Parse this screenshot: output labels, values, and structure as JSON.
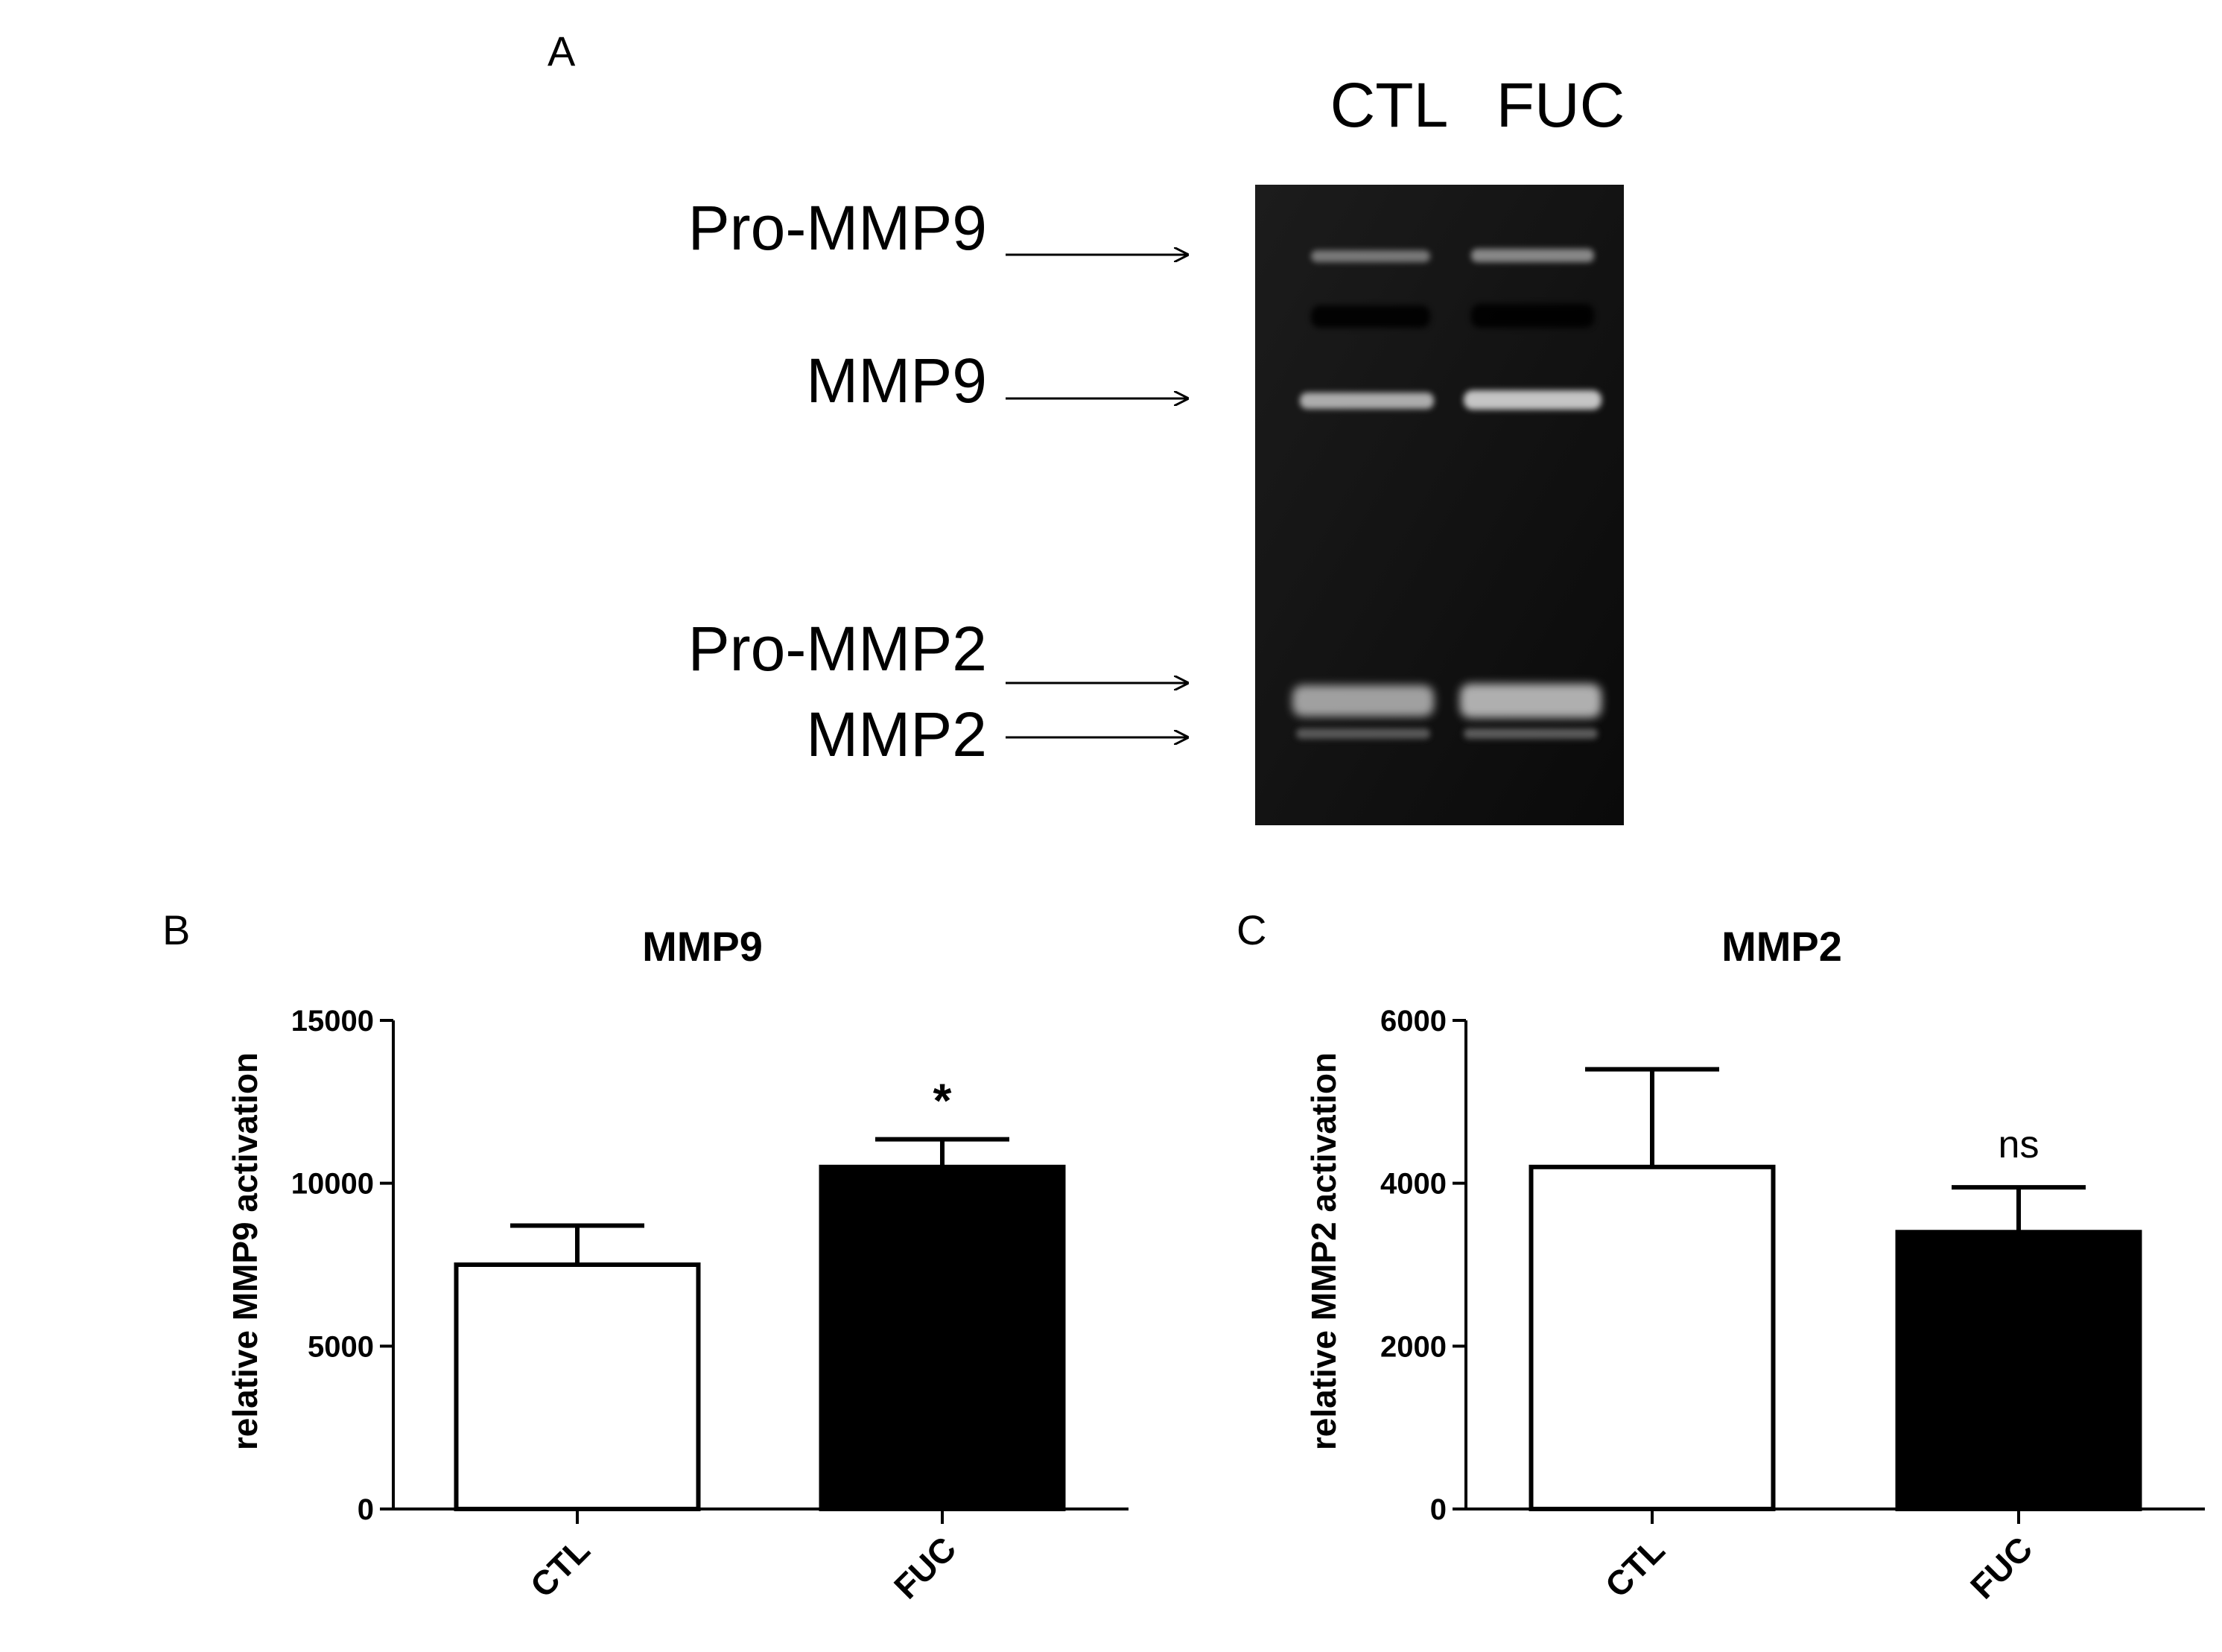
{
  "panel_a": {
    "letter": "A",
    "lanes": [
      "CTL",
      "FUC"
    ],
    "band_labels": [
      "Pro-MMP9",
      "MMP9",
      "Pro-MMP2",
      "MMP2"
    ]
  },
  "chart_data": [
    {
      "panel": "B",
      "type": "bar",
      "title": "MMP9",
      "xlabel": "",
      "ylabel": "relative MMP9 activation",
      "categories": [
        "CTL",
        "FUC"
      ],
      "values": [
        7500,
        10500
      ],
      "error": [
        1200,
        850
      ],
      "bar_colors": [
        "#ffffff",
        "#000000"
      ],
      "annotations": [
        "",
        "*"
      ],
      "ylim": [
        0,
        15000
      ],
      "yticks": [
        "0",
        "5000",
        "10000",
        "15000"
      ],
      "grid": false
    },
    {
      "panel": "C",
      "type": "bar",
      "title": "MMP2",
      "xlabel": "",
      "ylabel": "relative MMP2 activation",
      "categories": [
        "CTL",
        "FUC"
      ],
      "values": [
        4200,
        3400
      ],
      "error": [
        1200,
        550
      ],
      "bar_colors": [
        "#ffffff",
        "#000000"
      ],
      "annotations": [
        "",
        "ns"
      ],
      "ylim": [
        0,
        6000
      ],
      "yticks": [
        "0",
        "2000",
        "4000",
        "6000"
      ],
      "grid": false
    }
  ]
}
